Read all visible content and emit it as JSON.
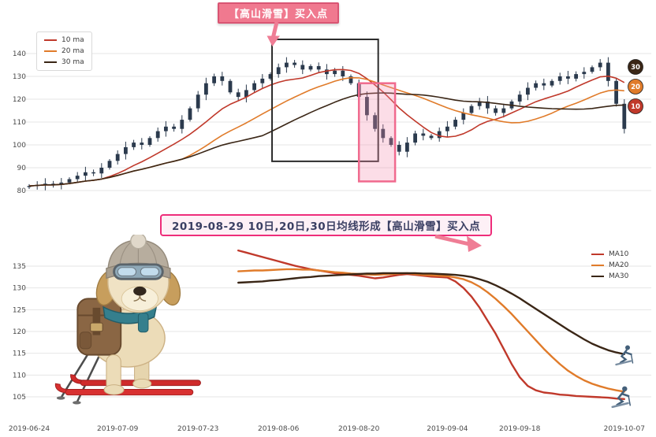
{
  "colors": {
    "ma10": "#c0392b",
    "ma20": "#e07b2a",
    "ma30": "#3a2616",
    "candle": "#2b3a4d",
    "grid": "#e6e6e6",
    "tick_text": "#4a4a4a",
    "callout_pink_bg": "#f0798f",
    "callout_pink_border": "#d95573",
    "arrow_pink": "#ef7d95",
    "black_box_stroke": "#2b2b2b",
    "pink_box_stroke": "#f06a8e",
    "pink_box_fill": "rgba(244,143,177,0.3)",
    "signal_box_border": "#ee2d7a",
    "signal_box_bg": "#fdf0f6",
    "signal_box_text": "#3a3f63"
  },
  "chart_data": [
    {
      "type": "candlestick",
      "title": "",
      "xlabel": "",
      "ylabel": "",
      "ylim": [
        78,
        148
      ],
      "y_ticks": [
        80,
        90,
        100,
        110,
        120,
        130,
        140
      ],
      "grid": "horizontal",
      "legend_position": "upper-left",
      "legend": [
        {
          "label": "10 ma",
          "color_key": "ma10"
        },
        {
          "label": "20 ma",
          "color_key": "ma20"
        },
        {
          "label": "30 ma",
          "color_key": "ma30"
        }
      ],
      "ma_windows": [
        10,
        20,
        30
      ],
      "badges": [
        {
          "label": "30",
          "color_key": "ma30"
        },
        {
          "label": "20",
          "color_key": "ma20"
        },
        {
          "label": "10",
          "color_key": "ma10"
        }
      ],
      "annotations": {
        "callout": {
          "text": "【高山滑雪】买入点"
        },
        "black_box": {
          "i0": 30.2,
          "i1": 43.4,
          "v0": 92.8,
          "v1": 146.2
        },
        "pink_box": {
          "i0": 41,
          "i1": 45.5,
          "v0": 84,
          "v1": 127
        }
      },
      "candles": [
        [
          81.5,
          82.8,
          80.7,
          82
        ],
        [
          82,
          84.1,
          80.4,
          82.5
        ],
        [
          82.5,
          85.4,
          80.1,
          83
        ],
        [
          83,
          84.2,
          81.3,
          82.5
        ],
        [
          82.5,
          85.5,
          80.5,
          83.5
        ],
        [
          83.5,
          85.8,
          82.7,
          85
        ],
        [
          85,
          88.1,
          83.4,
          86.5
        ],
        [
          86.5,
          90.4,
          84.1,
          88
        ],
        [
          88,
          89.2,
          86.3,
          87.5
        ],
        [
          87.5,
          92,
          85.5,
          90
        ],
        [
          90,
          93.8,
          89.2,
          93
        ],
        [
          93,
          97.6,
          91.4,
          96
        ],
        [
          96,
          101.4,
          93.6,
          99
        ],
        [
          99,
          102.2,
          97.8,
          101
        ],
        [
          101,
          103,
          98,
          100
        ],
        [
          100,
          103.8,
          99.2,
          103
        ],
        [
          103,
          107.6,
          101.4,
          106
        ],
        [
          106,
          110.4,
          103.6,
          108
        ],
        [
          108,
          109.2,
          105.8,
          107
        ],
        [
          107,
          113,
          105,
          111
        ],
        [
          111,
          116.8,
          110.2,
          116
        ],
        [
          116,
          123.6,
          114.4,
          122
        ],
        [
          122,
          129.4,
          119.6,
          127
        ],
        [
          127,
          131.2,
          125.8,
          130
        ],
        [
          130,
          132,
          126,
          128
        ],
        [
          128,
          128.8,
          122.2,
          123
        ],
        [
          123,
          124.6,
          119.4,
          121
        ],
        [
          121,
          126.4,
          118.6,
          124
        ],
        [
          124,
          128.2,
          122.8,
          127
        ],
        [
          127,
          131,
          125,
          129
        ],
        [
          129,
          131.8,
          128.2,
          131
        ],
        [
          131,
          135.6,
          129.4,
          134
        ],
        [
          134,
          138.4,
          131.6,
          136
        ],
        [
          136,
          137.2,
          133.8,
          135
        ],
        [
          135,
          137,
          131,
          133
        ],
        [
          133,
          135.3,
          132.2,
          134.5
        ],
        [
          134.5,
          136.1,
          131.4,
          133
        ],
        [
          133,
          135.4,
          128.6,
          131
        ],
        [
          131,
          133.7,
          129.8,
          132.5
        ],
        [
          132.5,
          134.5,
          128,
          130
        ],
        [
          130,
          130.8,
          126.2,
          127
        ],
        [
          127,
          128.6,
          119.4,
          121
        ],
        [
          121,
          123.4,
          110.6,
          113
        ],
        [
          113,
          114.2,
          105.8,
          107
        ],
        [
          107,
          109,
          101,
          103
        ],
        [
          103,
          103.8,
          99.2,
          100
        ],
        [
          100,
          101.6,
          95.4,
          97
        ],
        [
          97,
          103.4,
          94.6,
          101
        ],
        [
          101,
          106.2,
          99.8,
          105
        ],
        [
          105,
          107,
          102,
          104
        ],
        [
          104,
          104.8,
          102.2,
          103
        ],
        [
          103,
          107.6,
          101.4,
          106
        ],
        [
          106,
          110.4,
          103.6,
          108
        ],
        [
          108,
          112.2,
          106.8,
          111
        ],
        [
          111,
          116,
          109,
          114
        ],
        [
          114,
          117.8,
          113.2,
          117
        ],
        [
          117,
          120.6,
          115.4,
          119
        ],
        [
          119,
          121.4,
          113.6,
          116
        ],
        [
          116,
          117.2,
          112.8,
          114
        ],
        [
          114,
          118,
          112,
          116
        ],
        [
          116,
          119.8,
          115.2,
          119
        ],
        [
          119,
          123.6,
          117.4,
          122
        ],
        [
          122,
          127.4,
          119.6,
          125
        ],
        [
          125,
          128.2,
          123.8,
          127
        ],
        [
          127,
          129,
          124,
          126
        ],
        [
          126,
          128.8,
          125.2,
          128
        ],
        [
          128,
          131.6,
          126.4,
          130
        ],
        [
          130,
          132.4,
          126.6,
          129
        ],
        [
          129,
          132.2,
          127.8,
          131
        ],
        [
          131,
          134,
          129,
          132
        ],
        [
          132,
          134.8,
          131.2,
          134
        ],
        [
          134,
          137.6,
          132.4,
          136
        ],
        [
          136,
          138.4,
          125.6,
          128
        ],
        [
          128,
          129.2,
          116.8,
          118
        ],
        [
          118,
          120,
          105,
          107
        ]
      ]
    },
    {
      "type": "line",
      "title": "2019-08-29 10日,20日,30日均线形成【高山滑雪】买入点",
      "xlabel": "",
      "ylabel": "",
      "ylim": [
        100,
        140
      ],
      "y_ticks": [
        105,
        110,
        115,
        120,
        125,
        130,
        135
      ],
      "grid": "horizontal",
      "legend_position": "upper-right",
      "x_tick_labels": [
        "2019-06-24",
        "2019-07-09",
        "2019-07-23",
        "2019-08-06",
        "2019-08-20",
        "2019-09-04",
        "2019-09-18",
        "2019-10-07"
      ],
      "x_tick_indices": [
        0,
        11,
        21,
        31,
        41,
        52,
        61,
        74
      ],
      "legend": [
        {
          "label": "MA10",
          "color_key": "ma10"
        },
        {
          "label": "MA20",
          "color_key": "ma20"
        },
        {
          "label": "MA30",
          "color_key": "ma30"
        }
      ],
      "series": [
        {
          "name": "MA10",
          "color_key": "ma10",
          "start_index": 26,
          "values": [
            138.6,
            138.1,
            137.6,
            137.1,
            136.6,
            136.1,
            135.6,
            135.1,
            134.7,
            134.3,
            134.0,
            133.7,
            133.4,
            133.2,
            133.0,
            132.8,
            132.5,
            132.2,
            132.4,
            132.7,
            133.0,
            133.2,
            133.0,
            132.8,
            132.6,
            132.5,
            132.4,
            131.5,
            130.0,
            128.0,
            125.5,
            122.5,
            119.5,
            116.0,
            112.5,
            109.5,
            107.5,
            106.5,
            106.0,
            105.8,
            105.5,
            105.4,
            105.2,
            105.1,
            105.0,
            104.9,
            104.8,
            104.6,
            104.5
          ]
        },
        {
          "name": "MA20",
          "color_key": "ma20",
          "start_index": 26,
          "values": [
            133.8,
            133.9,
            134.0,
            134.0,
            134.1,
            134.2,
            134.3,
            134.3,
            134.2,
            134.2,
            134.0,
            133.8,
            133.6,
            133.5,
            133.3,
            133.2,
            133.1,
            133.0,
            133.1,
            133.2,
            133.3,
            133.4,
            133.2,
            133.0,
            132.9,
            132.8,
            132.7,
            132.4,
            132.0,
            131.3,
            130.3,
            129.0,
            127.5,
            125.8,
            124.0,
            122.0,
            120.0,
            118.0,
            116.0,
            114.2,
            112.5,
            111.0,
            109.8,
            108.8,
            108.0,
            107.4,
            106.9,
            106.5,
            106.2
          ]
        },
        {
          "name": "MA30",
          "color_key": "ma30",
          "start_index": 26,
          "values": [
            131.2,
            131.3,
            131.4,
            131.5,
            131.7,
            131.8,
            132.0,
            132.2,
            132.4,
            132.5,
            132.7,
            132.8,
            132.9,
            133.0,
            133.1,
            133.2,
            133.3,
            133.3,
            133.4,
            133.4,
            133.4,
            133.4,
            133.4,
            133.3,
            133.3,
            133.2,
            133.1,
            133.0,
            132.8,
            132.5,
            132.0,
            131.4,
            130.6,
            129.7,
            128.7,
            127.6,
            126.4,
            125.2,
            124.0,
            122.8,
            121.6,
            120.4,
            119.3,
            118.2,
            117.2,
            116.4,
            115.7,
            115.2,
            114.8
          ]
        }
      ]
    }
  ]
}
